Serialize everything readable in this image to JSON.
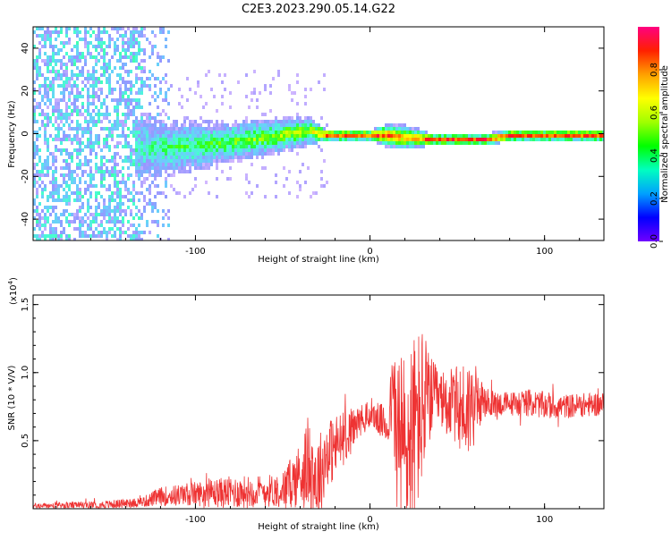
{
  "title": "C2E3.2023.290.05.14.G22",
  "colors": {
    "snr_line": "#ee3333",
    "axis": "#000000",
    "background": "#ffffff",
    "colormap": [
      "#7000ff",
      "#0000ff",
      "#00a0ff",
      "#00ffc0",
      "#00ff00",
      "#a0ff00",
      "#ffff00",
      "#ffa000",
      "#ff2000",
      "#ff0080"
    ]
  },
  "chart_data": [
    {
      "type": "heatmap",
      "name": "spectrogram",
      "xlabel": "Height of straight line (km)",
      "ylabel": "Frequency (Hz)",
      "xlim": [
        -193,
        134
      ],
      "ylim": [
        -50,
        50
      ],
      "xticks": [
        -100,
        0,
        100
      ],
      "xtick_labels": [
        "-100",
        "0",
        "100"
      ],
      "yticks": [
        -40,
        -20,
        0,
        20,
        40
      ],
      "ytick_labels": [
        "-40",
        "-20",
        "0",
        "20",
        "40"
      ],
      "ridge": {
        "x": [
          -130,
          -120,
          -100,
          -80,
          -60,
          -45,
          -35,
          -25,
          -10,
          0,
          10,
          20,
          35,
          50,
          65,
          80,
          95,
          110,
          125,
          134
        ],
        "frequency": [
          -6,
          -6,
          -5,
          -3,
          -1,
          1,
          2,
          0,
          0,
          0,
          0,
          -1,
          -2,
          -2,
          -2,
          0,
          0,
          0,
          0,
          0
        ],
        "amplitude": [
          0.35,
          0.4,
          0.45,
          0.5,
          0.55,
          0.6,
          0.6,
          0.9,
          0.9,
          0.9,
          0.9,
          0.8,
          0.9,
          0.9,
          0.9,
          0.95,
          0.9,
          0.9,
          0.9,
          0.9
        ],
        "spread_hz": [
          16,
          14,
          12,
          10,
          9,
          8,
          7,
          3,
          3,
          3,
          6,
          6,
          3,
          3,
          3,
          3,
          3,
          3,
          3,
          3
        ]
      },
      "noise_region_x": [
        -193,
        -115
      ]
    },
    {
      "type": "colorbar",
      "label": "Normalized spectral amplitude",
      "range": [
        0,
        1
      ],
      "ticks": [
        0.0,
        0.2,
        0.4,
        0.6,
        0.8
      ],
      "tick_labels": [
        "0.0",
        "0.2",
        "0.4",
        "0.6",
        "0.8"
      ]
    },
    {
      "type": "line",
      "name": "snr",
      "xlabel": "Height of straight line (km)",
      "ylabel": "SNR (10 * V/V)",
      "y_multiplier": "(x10",
      "y_multiplier_exp": "4",
      "y_multiplier_close": ")",
      "xlim": [
        -193,
        134
      ],
      "ylim": [
        0,
        15700
      ],
      "xticks": [
        -100,
        0,
        100
      ],
      "xtick_labels": [
        "-100",
        "0",
        "100"
      ],
      "yticks": [
        5000,
        10000,
        15000
      ],
      "ytick_labels": [
        "0.5",
        "1.0",
        "1.5"
      ],
      "envelope": {
        "x": [
          -193,
          -150,
          -130,
          -120,
          -100,
          -80,
          -60,
          -50,
          -40,
          -35,
          -30,
          -25,
          -20,
          -15,
          -10,
          -5,
          0,
          5,
          10,
          13,
          15,
          20,
          25,
          30,
          35,
          40,
          45,
          50,
          55,
          60,
          65,
          70,
          80,
          90,
          100,
          110,
          120,
          134
        ],
        "mean": [
          200,
          300,
          500,
          900,
          1100,
          1200,
          1300,
          1400,
          2500,
          3500,
          2000,
          4000,
          4500,
          5200,
          6000,
          6500,
          6900,
          6600,
          6000,
          8500,
          6000,
          4000,
          5500,
          7500,
          8200,
          8000,
          7800,
          7500,
          7200,
          7800,
          7800,
          7700,
          7700,
          7800,
          7600,
          7500,
          7600,
          7700
        ],
        "spread": [
          200,
          300,
          400,
          700,
          900,
          1200,
          1200,
          1300,
          2500,
          3500,
          3500,
          2500,
          2500,
          2000,
          1500,
          1200,
          1000,
          1200,
          1500,
          3000,
          6000,
          8000,
          7500,
          6000,
          3000,
          2000,
          2500,
          3000,
          4000,
          3000,
          1200,
          1000,
          900,
          1000,
          1000,
          900,
          900,
          900
        ]
      }
    }
  ]
}
